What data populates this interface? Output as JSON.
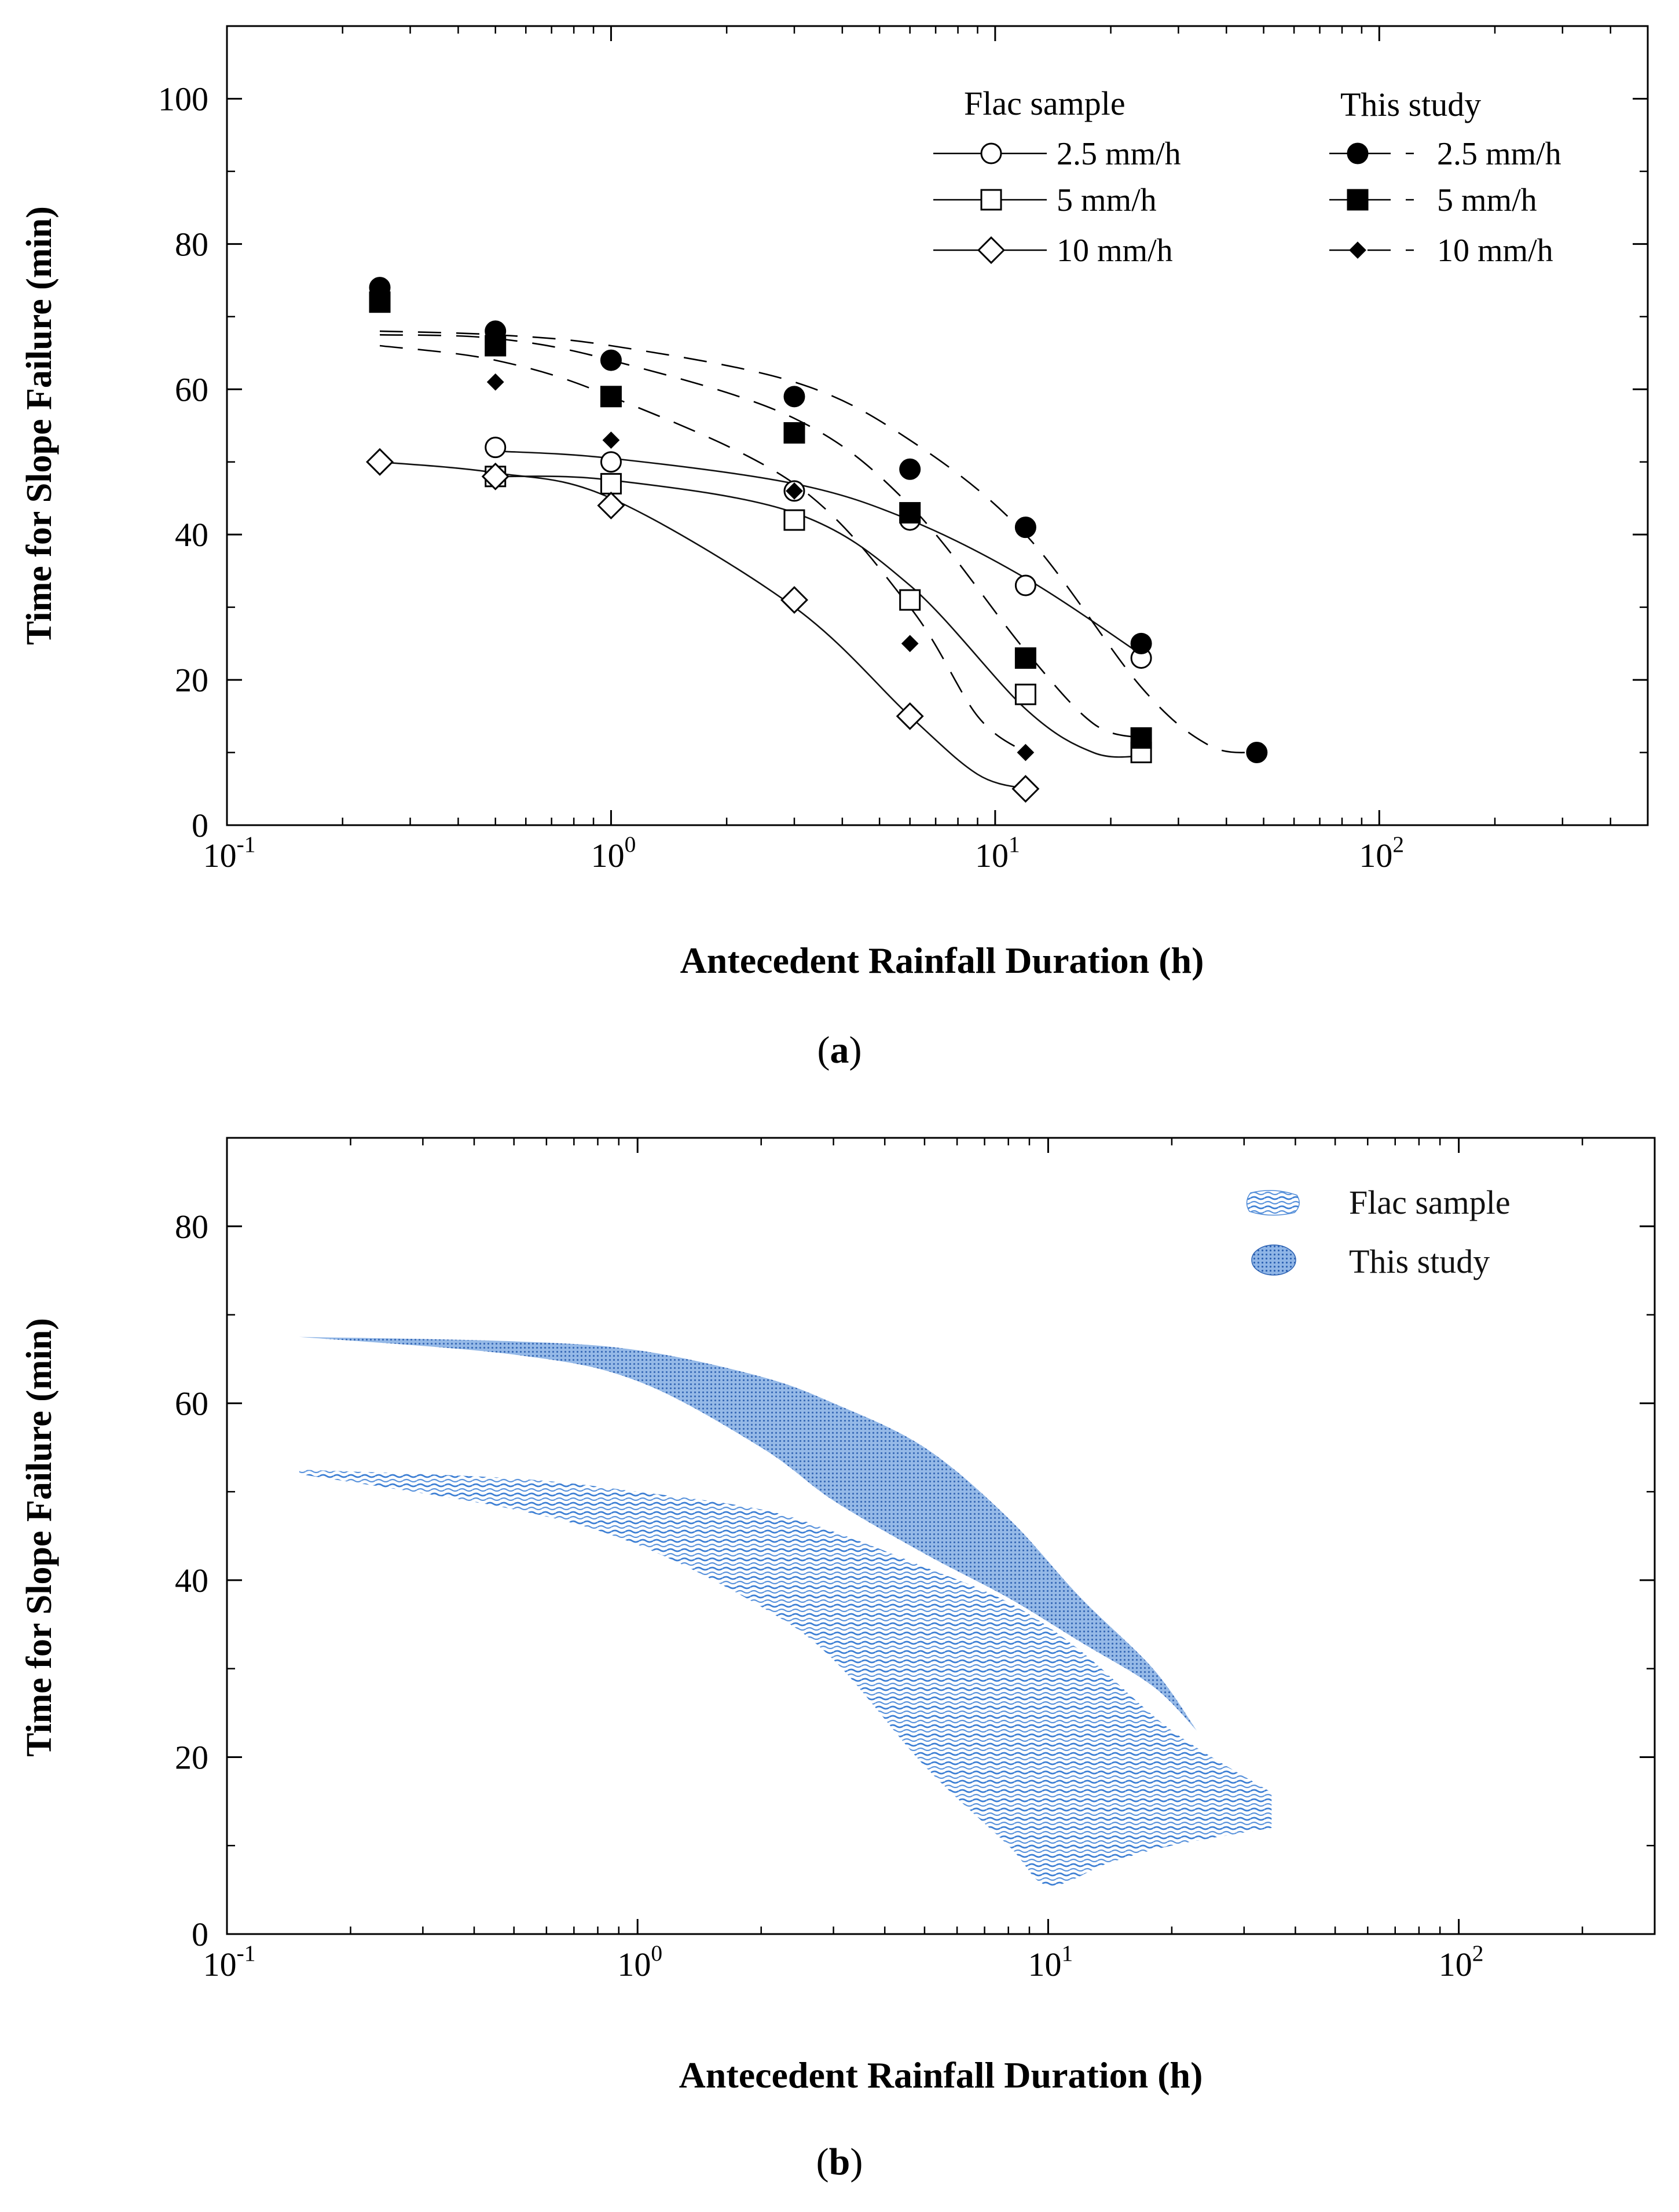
{
  "chart_data": [
    {
      "panel": "a",
      "panel_label": "(a)",
      "type": "scatter",
      "xscale": "log",
      "xlim": [
        0.1,
        500
      ],
      "ylim": [
        0,
        110
      ],
      "xlabel": "Antecedent Rainfall Duration (h)",
      "ylabel": "Time for Slope Failure (min)",
      "yticks": [
        "0",
        "20",
        "40",
        "60",
        "80",
        "100"
      ],
      "xticks": [
        {
          "base": "10",
          "exp": "-1"
        },
        {
          "base": "10",
          "exp": "0"
        },
        {
          "base": "10",
          "exp": "1"
        },
        {
          "base": "10",
          "exp": "2"
        }
      ],
      "legend_groups": [
        {
          "title": "Flac sample",
          "line": "solid",
          "entries": [
            "2.5 mm/h",
            "5 mm/h",
            "10 mm/h"
          ]
        },
        {
          "title": "This study",
          "line": "dashed",
          "entries": [
            "2.5 mm/h",
            "5 mm/h",
            "10 mm/h"
          ]
        }
      ],
      "series": [
        {
          "name": "Flac sample 2.5 mm/h",
          "marker": "circle-open",
          "line": "solid",
          "x": [
            0.5,
            1,
            3,
            6,
            12,
            24
          ],
          "y": [
            52,
            50,
            46,
            42,
            33,
            23
          ],
          "curve": {
            "x": [
              0.5,
              1,
              3,
              6,
              12,
              24
            ],
            "y": [
              51.5,
              50.5,
              47,
              42,
              34,
              23.5
            ]
          }
        },
        {
          "name": "Flac sample 5 mm/h",
          "marker": "square-open",
          "line": "solid",
          "x": [
            0.5,
            1,
            3,
            6,
            12,
            24
          ],
          "y": [
            48,
            47,
            42,
            31,
            18,
            10
          ],
          "curve": {
            "x": [
              0.5,
              1,
              3,
              6,
              12,
              18,
              24
            ],
            "y": [
              48,
              47.5,
              43,
              33,
              16,
              10,
              9.5
            ]
          }
        },
        {
          "name": "Flac sample 10 mm/h",
          "marker": "diamond-open",
          "line": "solid",
          "x": [
            0.25,
            0.5,
            1,
            3,
            6,
            12
          ],
          "y": [
            50,
            48,
            44,
            31,
            15,
            5
          ],
          "curve": {
            "x": [
              0.25,
              0.5,
              1,
              3,
              6,
              9,
              12
            ],
            "y": [
              50,
              48.5,
              45,
              30,
              15,
              7,
              5
            ]
          }
        },
        {
          "name": "This study 2.5 mm/h",
          "marker": "circle-filled",
          "line": "dashed",
          "x": [
            0.25,
            0.5,
            1,
            3,
            6,
            12,
            24,
            48
          ],
          "y": [
            74,
            68,
            64,
            59,
            49,
            41,
            25,
            10
          ],
          "curve": {
            "x": [
              0.25,
              0.5,
              1,
              3,
              6,
              12,
              24,
              36,
              48
            ],
            "y": [
              68,
              67.5,
              66,
              61,
              53,
              40,
              19,
              11,
              10
            ]
          }
        },
        {
          "name": "This study 5 mm/h",
          "marker": "square-filled",
          "line": "dashed",
          "x": [
            0.25,
            0.5,
            1,
            3,
            6,
            12,
            24
          ],
          "y": [
            72,
            66,
            59,
            54,
            43,
            23,
            12
          ],
          "curve": {
            "x": [
              0.25,
              0.5,
              1,
              3,
              6,
              12,
              18,
              24
            ],
            "y": [
              67.5,
              67,
              64,
              56,
              44,
              24,
              14,
              12
            ]
          }
        },
        {
          "name": "This study 10 mm/h",
          "marker": "diamond-filled",
          "line": "dashed",
          "x": [
            0.25,
            0.5,
            1,
            3,
            6,
            12
          ],
          "y": [
            73,
            61,
            53,
            46,
            25,
            10
          ],
          "curve": {
            "x": [
              0.25,
              0.5,
              1,
              3,
              6,
              9,
              12
            ],
            "y": [
              66,
              64,
              59,
              47,
              30,
              15,
              10
            ]
          }
        }
      ]
    },
    {
      "panel": "b",
      "panel_label": "(b)",
      "type": "area",
      "xscale": "log",
      "xlim": [
        0.1,
        300
      ],
      "ylim": [
        0,
        90
      ],
      "xlabel": "Antecedent Rainfall Duration (h)",
      "ylabel": "Time for Slope Failure (min)",
      "yticks": [
        "0",
        "20",
        "40",
        "60",
        "80"
      ],
      "xticks": [
        {
          "base": "10",
          "exp": "-1"
        },
        {
          "base": "10",
          "exp": "0"
        },
        {
          "base": "10",
          "exp": "1"
        },
        {
          "base": "10",
          "exp": "2"
        }
      ],
      "legend": [
        "Flac sample",
        "This study"
      ],
      "colors": {
        "band": "#1f66c4",
        "band_light": "#6fa6e6"
      },
      "series": [
        {
          "name": "This study",
          "upper": {
            "x": [
              0.15,
              0.5,
              1,
              2,
              3,
              5,
              8,
              12,
              18,
              23
            ],
            "y": [
              67.5,
              67,
              66,
              63,
              60,
              55,
              47,
              38,
              30,
              23
            ]
          },
          "lower": {
            "x": [
              0.15,
              0.5,
              1,
              2,
              3,
              5,
              8,
              12,
              18,
              23
            ],
            "y": [
              67.5,
              65.5,
              62.5,
              55,
              49,
              43,
              38,
              33,
              28,
              23
            ]
          }
        },
        {
          "name": "Flac sample",
          "upper": {
            "x": [
              0.15,
              0.5,
              1,
              2,
              3,
              5,
              8,
              12,
              20,
              35
            ],
            "y": [
              52.5,
              51.5,
              50,
              48,
              45.5,
              41.5,
              37.5,
              32,
              23,
              16
            ]
          },
          "lower": {
            "x": [
              0.15,
              0.5,
              1,
              2,
              3,
              5,
              8,
              10,
              14,
              20,
              35
            ],
            "y": [
              52,
              48,
              44,
              37,
              31,
              19,
              10,
              5.5,
              8,
              10,
              12
            ]
          }
        }
      ]
    }
  ]
}
